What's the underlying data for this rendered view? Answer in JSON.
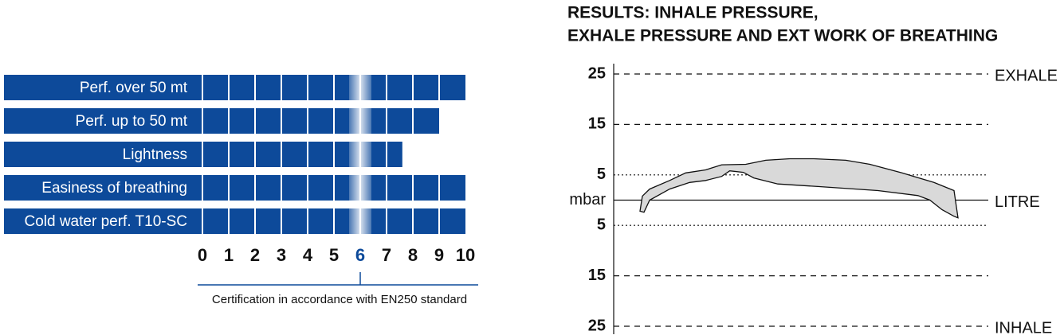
{
  "chart_data": [
    {
      "type": "bar",
      "orientation": "horizontal",
      "categories": [
        "Perf. over 50 mt",
        "Perf. up to 50 mt",
        "Lightness",
        "Easiness of breathing",
        "Cold water perf.  T10-SC"
      ],
      "values": [
        10,
        9,
        7.6,
        10,
        10
      ],
      "color": "#0d4a9a",
      "xlim": [
        0,
        10
      ],
      "xticks": [
        0,
        1,
        2,
        3,
        4,
        5,
        6,
        7,
        8,
        9,
        10
      ],
      "highlight": 6,
      "x_label": "Certification in accordance with EN250 standard",
      "grid": true
    },
    {
      "type": "area",
      "title": [
        "RESULTS: INHALE PRESSURE,",
        "EXHALE PRESSURE AND EXT WORK OF BREATHING"
      ],
      "xlim": [
        0,
        1
      ],
      "ylim": [
        -25,
        25
      ],
      "yticks": [
        {
          "value": 25,
          "label": "25"
        },
        {
          "value": 15,
          "label": "15"
        },
        {
          "value": 5,
          "label": "5"
        },
        {
          "value": 0,
          "label": "mbar"
        },
        {
          "value": -5,
          "label": "5"
        },
        {
          "value": -15,
          "label": "15"
        },
        {
          "value": -25,
          "label": "25"
        }
      ],
      "right_labels": [
        {
          "value": 25,
          "label": "EXHALE"
        },
        {
          "value": 0,
          "label": "LITRE"
        },
        {
          "value": -25,
          "label": "INHALE"
        }
      ],
      "series": [
        {
          "color": "#d9d9d9",
          "x": [
            0.0075,
            0.015,
            0.0375,
            0.1,
            0.15,
            0.2125,
            0.2625,
            0.3375,
            0.4,
            0.475,
            0.55,
            0.65,
            0.725,
            0.825,
            0.925,
            0.9875,
            1.0,
            0.9875,
            0.95,
            0.9125,
            0.875,
            0.75,
            0.5625,
            0.4375,
            0.3625,
            0.33,
            0.2875,
            0.2625,
            0.2125,
            0.1625,
            0.1,
            0.0375,
            0.02
          ],
          "values": [
            -2.2,
            0.8,
            2.2,
            3.9,
            5.4,
            6.0,
            7.0,
            7.1,
            7.9,
            8.2,
            8.2,
            7.9,
            7.1,
            5.4,
            3.5,
            1.9,
            -3.5,
            -3.2,
            -1.9,
            0,
            0.9,
            1.9,
            2.7,
            3.2,
            4.4,
            5.5,
            5.8,
            4.7,
            3.9,
            3.5,
            2.2,
            0,
            -2.4
          ]
        }
      ]
    }
  ]
}
